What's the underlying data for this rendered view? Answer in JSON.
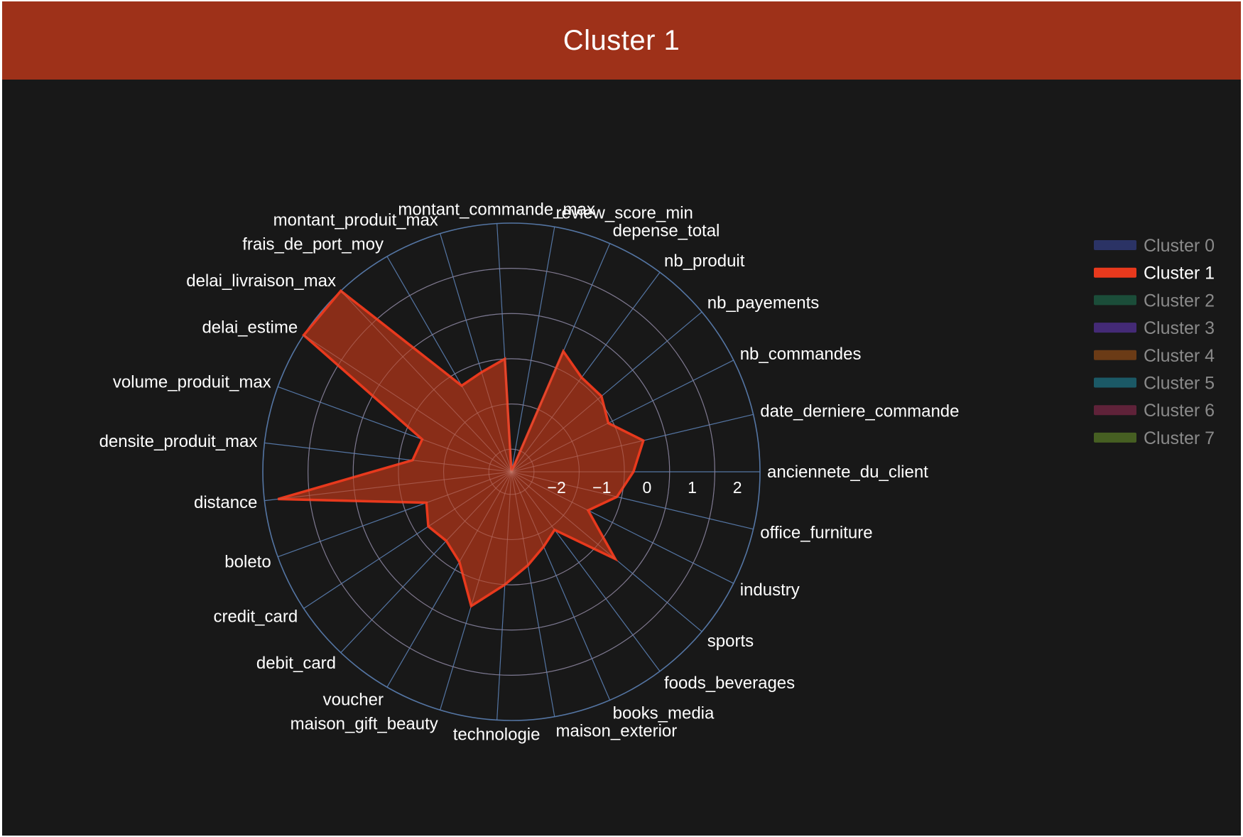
{
  "header": {
    "title": "Cluster 1"
  },
  "colors": {
    "background": "#181818",
    "header": "#9e3119",
    "grid": "#5b7fb3",
    "series_fill": "#9e3119",
    "series_line": "#e8391d"
  },
  "chart_data": {
    "type": "radar",
    "title": "Cluster 1",
    "radial_range": [
      -3,
      2.5
    ],
    "radial_ticks": [
      -2,
      -1,
      0,
      1,
      2
    ],
    "radial_tick_labels": [
      "−2",
      "−1",
      "0",
      "1",
      "2"
    ],
    "angular_labels": [
      "anciennete_du_client",
      "date_derniere_commande",
      "nb_commandes",
      "nb_payements",
      "nb_produit",
      "depense_total",
      "review_score_min",
      "montant_commande_max",
      "montant_produit_max",
      "frais_de_port_moy",
      "delai_livraison_max",
      "delai_estime",
      "volume_produit_max",
      "densite_produit_max",
      "distance",
      "boleto",
      "credit_card",
      "debit_card",
      "voucher",
      "maison_gift_beauty",
      "technologie",
      "maison_exterior",
      "books_media",
      "foods_beverages",
      "sports",
      "industry",
      "office_furniture"
    ],
    "series": [
      {
        "name": "Cluster 1",
        "values": [
          -0.3,
          0,
          -0.6,
          -0.4,
          -0.4,
          -0.1,
          -3,
          -0.5,
          -0.7,
          -0.8,
          2.5,
          2.5,
          -0.9,
          -0.8,
          2.2,
          -1.0,
          -0.8,
          -0.9,
          -0.7,
          0.1,
          -0.5,
          -0.9,
          -1.2,
          -1.4,
          0,
          -1.1,
          -0.6
        ]
      }
    ],
    "legend": {
      "position": "right",
      "entries": [
        {
          "name": "Cluster 0",
          "color": "#3c4aa5",
          "active": false
        },
        {
          "name": "Cluster 1",
          "color": "#e8391d",
          "active": true
        },
        {
          "name": "Cluster 2",
          "color": "#1f7a55",
          "active": false
        },
        {
          "name": "Cluster 3",
          "color": "#6a3bc4",
          "active": false
        },
        {
          "name": "Cluster 4",
          "color": "#b05a16",
          "active": false
        },
        {
          "name": "Cluster 5",
          "color": "#1f8fa8",
          "active": false
        },
        {
          "name": "Cluster 6",
          "color": "#9a2c55",
          "active": false
        },
        {
          "name": "Cluster 7",
          "color": "#6d9a2c",
          "active": false
        }
      ]
    }
  }
}
